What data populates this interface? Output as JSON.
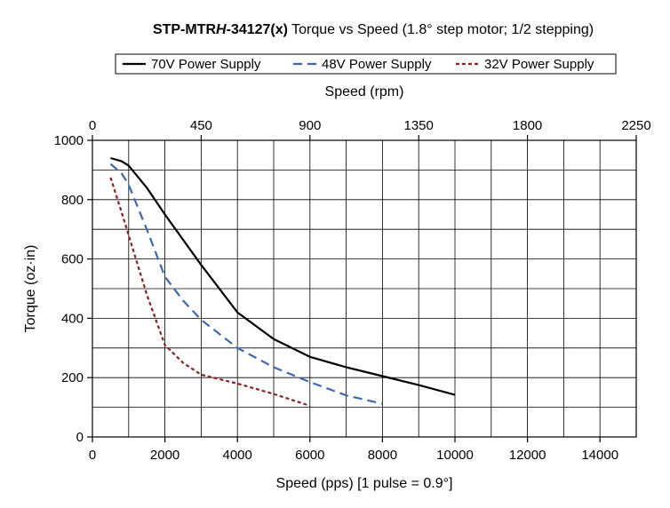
{
  "chart_data": {
    "type": "line",
    "title": {
      "model_prefix": "STP-MTR",
      "model_italic": "H",
      "model_suffix": "-34127(x)",
      "rest": " Torque vs Speed (1.8° step motor; 1/2 stepping)"
    },
    "xlabel": "Speed (pps)  [1 pulse = 0.9°]",
    "x2label": "Speed (rpm)",
    "ylabel": "Torque (oz·in)",
    "xlim": [
      0,
      15000
    ],
    "ylim": [
      0,
      1000
    ],
    "x2lim": [
      0,
      2250
    ],
    "xticks": [
      0,
      2000,
      4000,
      6000,
      8000,
      10000,
      12000,
      14000
    ],
    "yticks": [
      0,
      200,
      400,
      600,
      800,
      1000
    ],
    "x2ticks": [
      0,
      450,
      900,
      1350,
      1800,
      2250
    ],
    "grid": true,
    "legend_position": "top",
    "series": [
      {
        "name": "70V Power Supply",
        "style": "solid",
        "color": "#000000",
        "points": [
          [
            500,
            940
          ],
          [
            800,
            930
          ],
          [
            1000,
            915
          ],
          [
            1500,
            840
          ],
          [
            2000,
            750
          ],
          [
            3000,
            580
          ],
          [
            4000,
            420
          ],
          [
            5000,
            330
          ],
          [
            6000,
            270
          ],
          [
            7000,
            235
          ],
          [
            8000,
            205
          ],
          [
            9000,
            175
          ],
          [
            10000,
            142
          ]
        ]
      },
      {
        "name": "48V Power Supply",
        "style": "dashed",
        "color": "#3d68b0",
        "points": [
          [
            500,
            920
          ],
          [
            800,
            890
          ],
          [
            1000,
            850
          ],
          [
            1500,
            700
          ],
          [
            2000,
            540
          ],
          [
            2500,
            460
          ],
          [
            3000,
            395
          ],
          [
            4000,
            300
          ],
          [
            5000,
            235
          ],
          [
            6000,
            185
          ],
          [
            7000,
            140
          ],
          [
            8000,
            112
          ]
        ]
      },
      {
        "name": "32V Power Supply",
        "style": "dotted",
        "color": "#8b2323",
        "points": [
          [
            500,
            875
          ],
          [
            800,
            760
          ],
          [
            1000,
            680
          ],
          [
            1500,
            480
          ],
          [
            2000,
            310
          ],
          [
            2500,
            250
          ],
          [
            3000,
            210
          ],
          [
            4000,
            180
          ],
          [
            5000,
            145
          ],
          [
            6000,
            105
          ]
        ]
      }
    ]
  }
}
